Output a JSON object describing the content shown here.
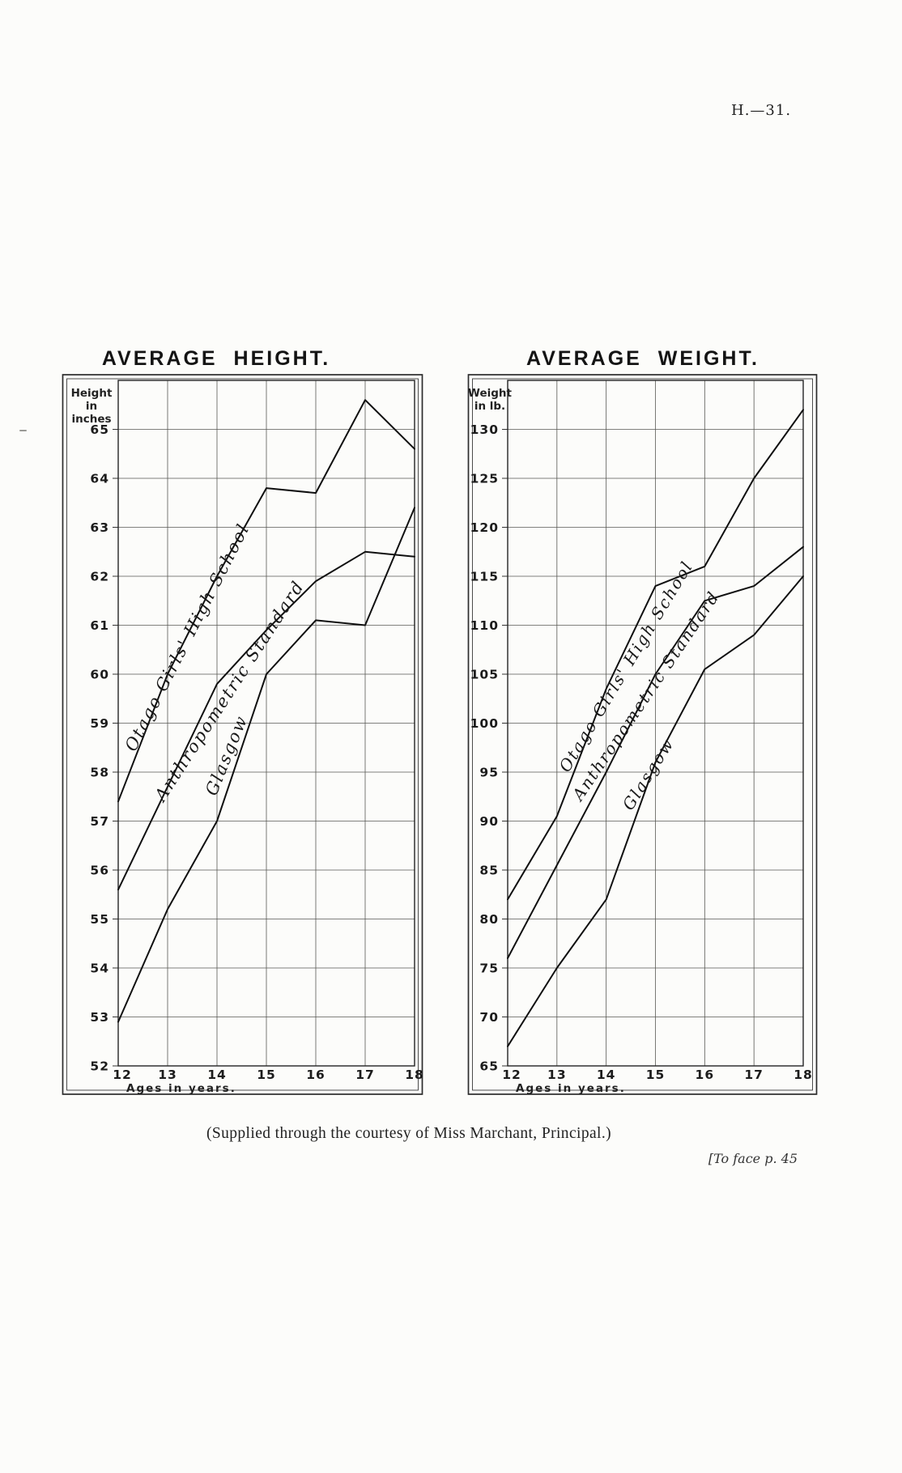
{
  "page": {
    "header_ref": "H.—31.",
    "caption": "(Supplied through the courtesy of Miss Marchant, Principal.)",
    "footer_note": "[To face p. 45"
  },
  "chart_data": [
    {
      "type": "line",
      "title": "AVERAGE HEIGHT.",
      "ylabel": "Height in inches",
      "ylabel_lines": [
        "Height",
        "in",
        "inches"
      ],
      "xlabel": "Ages in years.",
      "x": [
        12,
        13,
        14,
        15,
        16,
        17,
        18
      ],
      "xtick_labels": [
        "12",
        "13",
        "14",
        "15",
        "16",
        "17",
        "18"
      ],
      "xlim": [
        12,
        18
      ],
      "ylim": [
        52,
        66
      ],
      "yticks": [
        65,
        64,
        63,
        62,
        61,
        60,
        59,
        58,
        57,
        56,
        55,
        54,
        53,
        52
      ],
      "grid": true,
      "legend": "labels written along curves",
      "series": [
        {
          "name": "Otago Girls' High School",
          "values": [
            57.4,
            60.0,
            62.0,
            63.8,
            63.7,
            65.6,
            64.6
          ],
          "label_pos": {
            "x": 13.5,
            "y": 60.7,
            "angle": -63
          }
        },
        {
          "name": "Anthropometric Standard",
          "values": [
            55.6,
            57.7,
            59.8,
            60.9,
            61.9,
            62.5,
            62.4
          ],
          "label_pos": {
            "x": 14.35,
            "y": 59.6,
            "angle": -57
          }
        },
        {
          "name": "Glasgow",
          "values": [
            52.9,
            55.2,
            57.0,
            60.0,
            61.1,
            61.0,
            63.4
          ],
          "label_pos": {
            "x": 14.3,
            "y": 58.3,
            "angle": -68
          }
        }
      ]
    },
    {
      "type": "line",
      "title": "AVERAGE WEIGHT.",
      "ylabel": "Weight in lb.",
      "ylabel_lines": [
        "Weight",
        "in lb."
      ],
      "xlabel": "Ages in years.",
      "x": [
        12,
        13,
        14,
        15,
        16,
        17,
        18
      ],
      "xtick_labels": [
        "12",
        "13",
        "14",
        "15",
        "16",
        "17",
        "18"
      ],
      "xlim": [
        12,
        18
      ],
      "ylim": [
        65,
        135
      ],
      "yticks": [
        130,
        125,
        120,
        115,
        110,
        105,
        100,
        95,
        90,
        85,
        80,
        75,
        70,
        65
      ],
      "grid": true,
      "legend": "labels written along curves",
      "series": [
        {
          "name": "Otago Girls' High School",
          "values": [
            82,
            90.5,
            103.5,
            114,
            116,
            125,
            132
          ],
          "label_pos": {
            "x": 14.5,
            "y": 105.5,
            "angle": -59
          }
        },
        {
          "name": "Anthropometric Standard",
          "values": [
            76,
            85.5,
            95,
            105,
            112.5,
            114,
            118
          ],
          "label_pos": {
            "x": 14.9,
            "y": 102.5,
            "angle": -56
          }
        },
        {
          "name": "Glasgow",
          "values": [
            67,
            75,
            82,
            96,
            105.5,
            109,
            115
          ],
          "label_pos": {
            "x": 14.95,
            "y": 94.5,
            "angle": -58
          }
        }
      ]
    }
  ]
}
